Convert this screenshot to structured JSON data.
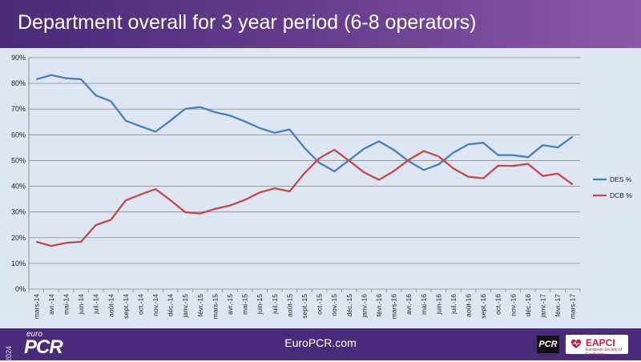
{
  "header": {
    "title": "Department overall for 3 year period (6-8 operators)"
  },
  "footer": {
    "site": "EuroPCR.com",
    "logo_year": "2024",
    "logo_euro": "euro",
    "logo_pcr": "PCR",
    "pcr_badge": "PCR",
    "eapci_text": "EAPCI",
    "eapci_sub": "European Society of Cardiology"
  },
  "colors": {
    "header_bg": "#5a3585",
    "chart_bg": "#dde6f2",
    "des": "#4a7ebb",
    "dcb": "#be4b48"
  },
  "chart_data": {
    "type": "line",
    "title": "",
    "xlabel": "",
    "ylabel": "",
    "ylim": [
      0,
      90
    ],
    "yticks": [
      "0%",
      "10%",
      "20%",
      "30%",
      "40%",
      "50%",
      "60%",
      "70%",
      "80%",
      "90%"
    ],
    "legend_position": "right",
    "grid": "horizontal",
    "categories": [
      "mars-14",
      "avr.-14",
      "mai-14",
      "juin-14",
      "juil.-14",
      "août-14",
      "sept.-14",
      "oct.-14",
      "nov.-14",
      "déc.-14",
      "janv.-15",
      "févr.-15",
      "mars-15",
      "avr.-15",
      "mai-15",
      "juin-15",
      "juil.-15",
      "août-15",
      "sept.-15",
      "oct.-15",
      "nov.-15",
      "déc.-15",
      "janv.-16",
      "févr.-16",
      "mars-16",
      "avr.-16",
      "mai-16",
      "juin-16",
      "juil.-16",
      "août-16",
      "sept.-16",
      "oct.-16",
      "nov.-16",
      "déc.-16",
      "janv.-17",
      "févr.-17",
      "mars-17"
    ],
    "series": [
      {
        "name": "DES %",
        "color": "#4a7ebb",
        "values": [
          81.6,
          83.2,
          82.0,
          81.6,
          75.3,
          73.1,
          65.5,
          63.3,
          61.2,
          65.5,
          70.1,
          70.8,
          68.8,
          67.5,
          65.2,
          62.6,
          60.8,
          62.1,
          54.9,
          49.1,
          45.8,
          50.1,
          54.6,
          57.5,
          54.1,
          49.7,
          46.3,
          48.5,
          53.1,
          56.3,
          56.9,
          52.1,
          52.1,
          51.3,
          56.0,
          55.1,
          59.3
        ]
      },
      {
        "name": "DCB %",
        "color": "#be4b48",
        "values": [
          18.4,
          16.8,
          18.0,
          18.4,
          24.9,
          26.9,
          34.5,
          36.8,
          38.9,
          34.6,
          29.9,
          29.4,
          31.2,
          32.5,
          34.7,
          37.6,
          39.2,
          38.0,
          45.1,
          50.9,
          54.2,
          49.9,
          45.4,
          42.5,
          45.9,
          50.3,
          53.7,
          51.6,
          46.9,
          43.7,
          43.1,
          48.0,
          47.9,
          48.7,
          44.0,
          44.9,
          40.7
        ]
      }
    ]
  }
}
